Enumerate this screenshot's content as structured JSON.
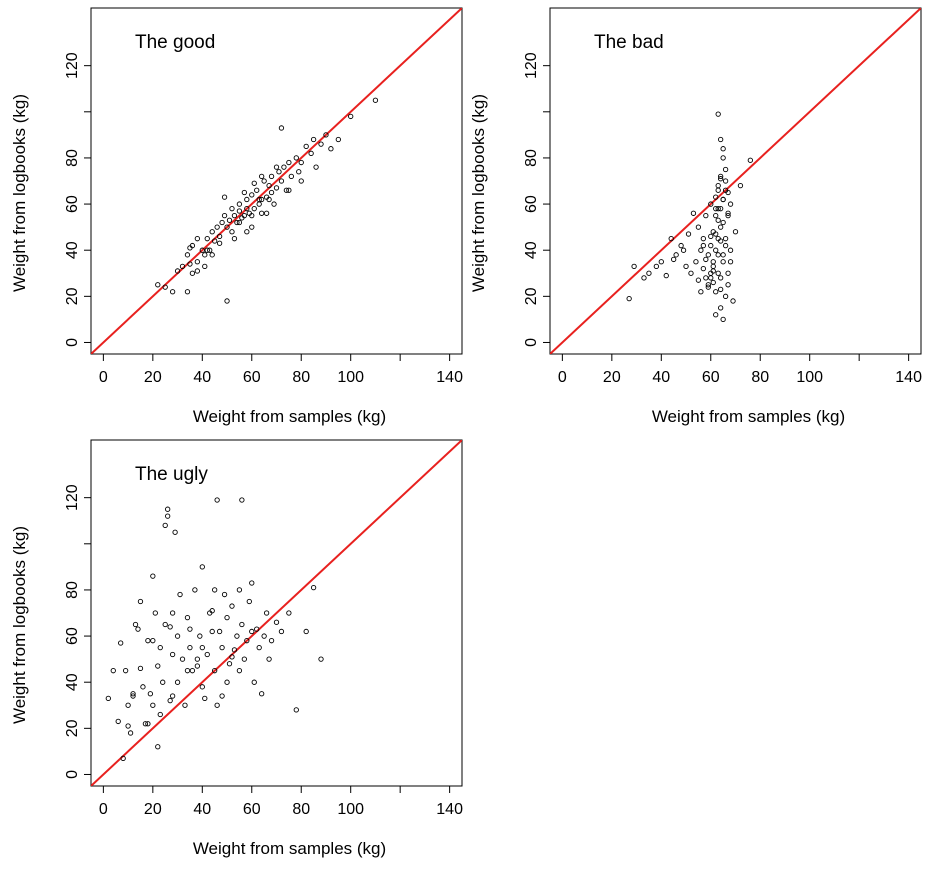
{
  "chart_data": [
    {
      "type": "scatter",
      "title": "The good",
      "xlabel": "Weight from samples (kg)",
      "ylabel": "Weight from logbooks (kg)",
      "xlim": [
        -5,
        145
      ],
      "ylim": [
        -5,
        145
      ],
      "xticks": [
        0,
        20,
        40,
        60,
        80,
        100,
        140
      ],
      "yticks": [
        0,
        20,
        40,
        60,
        80,
        120
      ],
      "grid": false,
      "reference_line": {
        "slope": 1,
        "intercept": 0,
        "color": "#e8211f"
      },
      "point_color": "#000000",
      "series": [
        {
          "x": [
            22,
            25,
            28,
            30,
            32,
            34,
            34,
            35,
            36,
            36,
            38,
            38,
            40,
            41,
            42,
            43,
            44,
            45,
            46,
            47,
            48,
            49,
            50,
            50,
            51,
            52,
            53,
            54,
            55,
            55,
            56,
            57,
            58,
            58,
            59,
            60,
            60,
            61,
            62,
            63,
            64,
            64,
            65,
            66,
            67,
            68,
            68,
            69,
            70,
            71,
            72,
            73,
            74,
            75,
            76,
            78,
            79,
            80,
            82,
            84,
            85,
            88,
            90,
            95,
            100,
            110,
            49,
            38,
            47,
            63,
            72,
            80,
            55,
            58,
            44,
            52,
            66,
            70,
            35,
            42,
            61,
            64,
            67,
            75,
            86,
            92,
            57,
            53,
            60,
            41
          ],
          "y": [
            25,
            24,
            22,
            31,
            33,
            22,
            38,
            34,
            42,
            30,
            35,
            45,
            40,
            38,
            45,
            40,
            48,
            44,
            50,
            46,
            52,
            55,
            18,
            50,
            53,
            48,
            55,
            52,
            57,
            60,
            54,
            55,
            62,
            58,
            56,
            64,
            50,
            58,
            66,
            60,
            62,
            56,
            70,
            63,
            68,
            65,
            72,
            60,
            67,
            74,
            70,
            76,
            66,
            78,
            72,
            80,
            74,
            78,
            85,
            82,
            88,
            86,
            90,
            88,
            98,
            105,
            63,
            31,
            43,
            62,
            93,
            70,
            52,
            48,
            38,
            58,
            56,
            76,
            41,
            40,
            69,
            72,
            62,
            66,
            76,
            84,
            65,
            45,
            55,
            33
          ]
        }
      ]
    },
    {
      "type": "scatter",
      "title": "The bad",
      "xlabel": "Weight from samples (kg)",
      "ylabel": "Weight from logbooks (kg)",
      "xlim": [
        -5,
        145
      ],
      "ylim": [
        -5,
        145
      ],
      "xticks": [
        0,
        20,
        40,
        60,
        80,
        100,
        140
      ],
      "yticks": [
        0,
        20,
        40,
        60,
        80,
        120
      ],
      "grid": false,
      "reference_line": {
        "slope": 1,
        "intercept": 0,
        "color": "#e8211f"
      },
      "point_color": "#000000",
      "series": [
        {
          "x": [
            27,
            29,
            33,
            35,
            38,
            40,
            42,
            44,
            45,
            46,
            48,
            49,
            50,
            51,
            52,
            53,
            54,
            55,
            55,
            56,
            56,
            57,
            57,
            58,
            58,
            59,
            59,
            60,
            60,
            60,
            61,
            61,
            61,
            62,
            62,
            62,
            62,
            63,
            63,
            63,
            63,
            64,
            64,
            64,
            64,
            65,
            65,
            65,
            65,
            66,
            66,
            66,
            67,
            67,
            67,
            68,
            68,
            69,
            70,
            72,
            76,
            63,
            64,
            65,
            62,
            66,
            64,
            63,
            65,
            61,
            60,
            59,
            58,
            57,
            62,
            63,
            64,
            65,
            66,
            67,
            64,
            63,
            62,
            61,
            60,
            65,
            66,
            67,
            68,
            64
          ],
          "y": [
            19,
            33,
            28,
            30,
            33,
            35,
            29,
            45,
            36,
            38,
            42,
            40,
            33,
            47,
            30,
            56,
            35,
            27,
            50,
            40,
            22,
            32,
            45,
            28,
            55,
            38,
            24,
            42,
            30,
            60,
            35,
            48,
            26,
            22,
            40,
            55,
            63,
            30,
            45,
            58,
            68,
            15,
            28,
            50,
            72,
            10,
            35,
            62,
            80,
            20,
            45,
            70,
            25,
            55,
            65,
            40,
            60,
            18,
            48,
            68,
            79,
            99,
            88,
            84,
            12,
            75,
            44,
            38,
            52,
            33,
            28,
            25,
            36,
            42,
            47,
            53,
            58,
            62,
            66,
            30,
            23,
            66,
            58,
            31,
            46,
            38,
            42,
            56,
            35,
            71
          ]
        }
      ]
    },
    {
      "type": "scatter",
      "title": "The ugly",
      "xlabel": "Weight from samples (kg)",
      "ylabel": "Weight from logbooks (kg)",
      "xlim": [
        -5,
        145
      ],
      "ylim": [
        -5,
        145
      ],
      "xticks": [
        0,
        20,
        40,
        60,
        80,
        100,
        140
      ],
      "yticks": [
        0,
        20,
        40,
        60,
        80,
        120
      ],
      "grid": false,
      "reference_line": {
        "slope": 1,
        "intercept": 0,
        "color": "#e8211f"
      },
      "point_color": "#000000",
      "series": [
        {
          "x": [
            2,
            4,
            6,
            7,
            8,
            9,
            10,
            11,
            12,
            13,
            14,
            15,
            16,
            17,
            18,
            19,
            20,
            20,
            21,
            22,
            22,
            23,
            24,
            25,
            25,
            26,
            27,
            28,
            28,
            29,
            30,
            30,
            31,
            32,
            33,
            34,
            35,
            35,
            36,
            37,
            38,
            39,
            40,
            40,
            41,
            42,
            43,
            44,
            45,
            45,
            46,
            47,
            48,
            49,
            50,
            50,
            51,
            52,
            53,
            54,
            55,
            55,
            56,
            57,
            58,
            59,
            60,
            60,
            61,
            62,
            63,
            64,
            65,
            66,
            67,
            68,
            70,
            72,
            75,
            78,
            82,
            85,
            88,
            46,
            56,
            26,
            27,
            28,
            38,
            20,
            10,
            12,
            15,
            18,
            23,
            34,
            40,
            44,
            48,
            52
          ],
          "y": [
            33,
            45,
            23,
            57,
            7,
            45,
            30,
            18,
            35,
            65,
            63,
            75,
            38,
            22,
            58,
            35,
            30,
            86,
            70,
            12,
            47,
            55,
            40,
            65,
            108,
            115,
            32,
            52,
            70,
            105,
            40,
            60,
            78,
            50,
            30,
            68,
            55,
            63,
            45,
            80,
            50,
            60,
            38,
            90,
            33,
            52,
            70,
            62,
            45,
            80,
            30,
            62,
            55,
            78,
            40,
            68,
            48,
            73,
            54,
            60,
            45,
            80,
            65,
            50,
            58,
            75,
            62,
            83,
            40,
            63,
            55,
            35,
            60,
            70,
            50,
            58,
            66,
            62,
            70,
            28,
            62,
            81,
            50,
            119,
            119,
            112,
            64,
            34,
            47,
            58,
            21,
            34,
            46,
            22,
            26,
            45,
            55,
            71,
            34,
            51
          ]
        }
      ]
    }
  ]
}
